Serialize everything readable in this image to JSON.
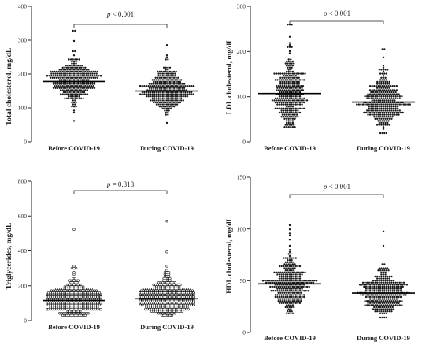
{
  "chart_data": [
    {
      "type": "scatter",
      "ylabel": "Total cholesterol, mg/dL",
      "categories": [
        "Before COVID-19",
        "During COVID-19"
      ],
      "ylim": [
        0,
        400
      ],
      "yticks": [
        0,
        100,
        200,
        300,
        400
      ],
      "tick_labels": [
        "0",
        "100",
        "200",
        "300",
        "400"
      ],
      "medians": [
        178,
        150
      ],
      "pvalue": {
        "p": "p",
        "rest": " < 0.001"
      },
      "marker": "filled",
      "groups": [
        {
          "center": 178,
          "spread": 32,
          "n": 320,
          "min": 62,
          "max": 325
        },
        {
          "center": 150,
          "spread": 28,
          "n": 320,
          "min": 55,
          "max": 285
        }
      ]
    },
    {
      "type": "scatter",
      "ylabel": "LDL cholesterol, mg/dL",
      "categories": [
        "Before COVID-19",
        "During COVID-19"
      ],
      "ylim": [
        0,
        300
      ],
      "yticks": [
        0,
        100,
        200,
        300
      ],
      "tick_labels": [
        "0",
        "100",
        "200",
        "300"
      ],
      "medians": [
        107,
        88
      ],
      "pvalue": {
        "p": "p",
        "rest": " < 0.001"
      },
      "marker": "filled",
      "groups": [
        {
          "center": 107,
          "spread": 35,
          "n": 320,
          "min": 32,
          "max": 258
        },
        {
          "center": 88,
          "spread": 28,
          "n": 320,
          "min": 18,
          "max": 205
        }
      ]
    },
    {
      "type": "scatter",
      "ylabel": "Triglycerides, mg/dL",
      "categories": [
        "Before COVID-19",
        "During COVID-19"
      ],
      "ylim": [
        0,
        800
      ],
      "yticks": [
        0,
        200,
        400,
        600,
        800
      ],
      "tick_labels": [
        "0",
        "200",
        "400",
        "600",
        "800"
      ],
      "medians": [
        115,
        125
      ],
      "pvalue": {
        "p": "p",
        "rest": " = 0.318"
      },
      "marker": "open",
      "groups": [
        {
          "center": 115,
          "spread": 45,
          "n": 420,
          "min": 28,
          "max": 520
        },
        {
          "center": 125,
          "spread": 48,
          "n": 420,
          "min": 28,
          "max": 575
        }
      ]
    },
    {
      "type": "scatter",
      "ylabel": "HDL cholesterol, mg/dL",
      "categories": [
        "Before COVID-19",
        "During COVID-19"
      ],
      "ylim": [
        0,
        150
      ],
      "yticks": [
        0,
        50,
        100,
        150
      ],
      "tick_labels": [
        "0",
        "50",
        "100",
        "150"
      ],
      "medians": [
        47,
        38
      ],
      "pvalue": {
        "p": "p",
        "rest": " < 0.001"
      },
      "marker": "filled",
      "groups": [
        {
          "center": 47,
          "spread": 12,
          "n": 320,
          "min": 18,
          "max": 103
        },
        {
          "center": 38,
          "spread": 10,
          "n": 320,
          "min": 15,
          "max": 97
        }
      ]
    }
  ],
  "colors": {
    "points": "#1a1a1a",
    "axes": "#222222"
  }
}
